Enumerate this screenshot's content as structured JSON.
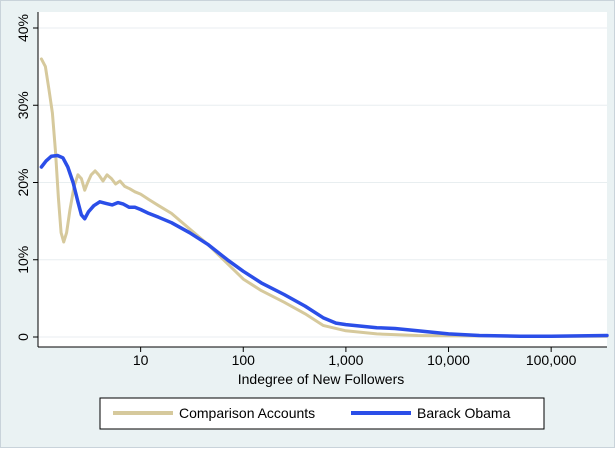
{
  "chart_data": {
    "type": "line",
    "title": "",
    "xlabel": "Indegree of New Followers",
    "ylabel": "",
    "x_scale": "log",
    "xlim": [
      1.0,
      350000
    ],
    "ylim": [
      0,
      40
    ],
    "x_ticks": [
      {
        "value": 10,
        "label": "10"
      },
      {
        "value": 100,
        "label": "100"
      },
      {
        "value": 1000,
        "label": "1,000"
      },
      {
        "value": 10000,
        "label": "10,000"
      },
      {
        "value": 100000,
        "label": "100,000"
      }
    ],
    "y_ticks": [
      {
        "value": 0,
        "label": "0"
      },
      {
        "value": 10,
        "label": "10%"
      },
      {
        "value": 20,
        "label": "20%"
      },
      {
        "value": 30,
        "label": "30%"
      },
      {
        "value": 40,
        "label": "40%"
      }
    ],
    "grid": true,
    "legend_position": "bottom",
    "series": [
      {
        "name": "Comparison Accounts",
        "color": "#d6c99c",
        "points": [
          [
            1.08,
            36.0
          ],
          [
            1.18,
            35.0
          ],
          [
            1.28,
            32.0
          ],
          [
            1.38,
            29.0
          ],
          [
            1.48,
            24.0
          ],
          [
            1.58,
            18.0
          ],
          [
            1.68,
            13.5
          ],
          [
            1.78,
            12.3
          ],
          [
            1.9,
            13.5
          ],
          [
            2.05,
            16.5
          ],
          [
            2.25,
            19.5
          ],
          [
            2.45,
            21.0
          ],
          [
            2.65,
            20.5
          ],
          [
            2.85,
            19.0
          ],
          [
            3.05,
            20.0
          ],
          [
            3.3,
            21.0
          ],
          [
            3.6,
            21.5
          ],
          [
            3.9,
            21.0
          ],
          [
            4.3,
            20.2
          ],
          [
            4.7,
            21.0
          ],
          [
            5.2,
            20.5
          ],
          [
            5.7,
            19.8
          ],
          [
            6.3,
            20.2
          ],
          [
            7.0,
            19.5
          ],
          [
            7.8,
            19.2
          ],
          [
            8.8,
            18.8
          ],
          [
            10,
            18.5
          ],
          [
            12,
            17.8
          ],
          [
            15,
            17.0
          ],
          [
            20,
            16.0
          ],
          [
            30,
            14.0
          ],
          [
            45,
            12.0
          ],
          [
            70,
            9.5
          ],
          [
            100,
            7.5
          ],
          [
            150,
            6.0
          ],
          [
            250,
            4.5
          ],
          [
            400,
            3.0
          ],
          [
            600,
            1.5
          ],
          [
            1000,
            0.8
          ],
          [
            2000,
            0.4
          ],
          [
            5000,
            0.2
          ],
          [
            10000,
            0.15
          ],
          [
            50000,
            0.1
          ],
          [
            350000,
            0.1
          ]
        ]
      },
      {
        "name": "Barack Obama",
        "color": "#2b4ee8",
        "points": [
          [
            1.08,
            22.0
          ],
          [
            1.2,
            22.8
          ],
          [
            1.35,
            23.4
          ],
          [
            1.55,
            23.5
          ],
          [
            1.75,
            23.2
          ],
          [
            1.95,
            22.0
          ],
          [
            2.2,
            20.0
          ],
          [
            2.45,
            17.5
          ],
          [
            2.65,
            15.8
          ],
          [
            2.85,
            15.3
          ],
          [
            3.1,
            16.2
          ],
          [
            3.5,
            17.0
          ],
          [
            4.0,
            17.5
          ],
          [
            4.6,
            17.3
          ],
          [
            5.3,
            17.1
          ],
          [
            6.0,
            17.4
          ],
          [
            6.8,
            17.2
          ],
          [
            7.7,
            16.8
          ],
          [
            8.8,
            16.8
          ],
          [
            10,
            16.5
          ],
          [
            12,
            16.0
          ],
          [
            15,
            15.5
          ],
          [
            20,
            14.8
          ],
          [
            30,
            13.5
          ],
          [
            45,
            12.0
          ],
          [
            70,
            10.0
          ],
          [
            100,
            8.5
          ],
          [
            150,
            7.0
          ],
          [
            250,
            5.5
          ],
          [
            400,
            4.0
          ],
          [
            600,
            2.5
          ],
          [
            800,
            1.8
          ],
          [
            1000,
            1.6
          ],
          [
            2000,
            1.2
          ],
          [
            3000,
            1.1
          ],
          [
            5000,
            0.8
          ],
          [
            10000,
            0.4
          ],
          [
            20000,
            0.2
          ],
          [
            50000,
            0.1
          ],
          [
            100000,
            0.1
          ],
          [
            350000,
            0.2
          ]
        ]
      }
    ]
  }
}
